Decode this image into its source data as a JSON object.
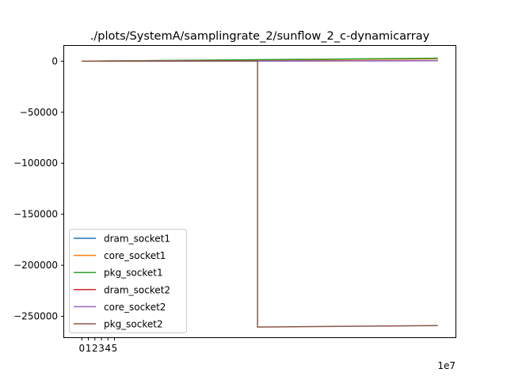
{
  "chart_data": {
    "type": "line",
    "title": "./plots/SystemA/samplingrate_2/sunflow_2_c-dynamicarray",
    "xlabel": "",
    "ylabel": "",
    "x_offset_label": "1e7",
    "xlim": [
      -2.7,
      57.2
    ],
    "ylim": [
      -270500,
      15000
    ],
    "xticks": [
      0,
      1,
      2,
      3,
      4,
      5
    ],
    "yticks": [
      0,
      -50000,
      -100000,
      -150000,
      -200000,
      -250000
    ],
    "xtick_labels": [
      "0",
      "1",
      "2",
      "3",
      "4",
      "5"
    ],
    "ytick_labels": [
      "0",
      "−50000",
      "−100000",
      "−150000",
      "−200000",
      "−250000"
    ],
    "legend_position": "lower-left",
    "grid": false,
    "series": [
      {
        "name": "dram_socket1",
        "color": "#1f77b4",
        "x": [
          0,
          27,
          54.5
        ],
        "y": [
          0,
          300,
          600
        ]
      },
      {
        "name": "core_socket1",
        "color": "#ff7f0e",
        "x": [
          0,
          27,
          54.5
        ],
        "y": [
          0,
          1200,
          2400
        ]
      },
      {
        "name": "pkg_socket1",
        "color": "#2ca02c",
        "x": [
          0,
          27,
          54.5
        ],
        "y": [
          0,
          1500,
          3000
        ]
      },
      {
        "name": "dram_socket2",
        "color": "#d62728",
        "x": [
          0,
          27,
          54.5
        ],
        "y": [
          0,
          300,
          600
        ]
      },
      {
        "name": "core_socket2",
        "color": "#9467bd",
        "x": [
          0,
          27,
          54.5
        ],
        "y": [
          0,
          200,
          400
        ]
      },
      {
        "name": "pkg_socket2",
        "color": "#8c564b",
        "x": [
          0,
          26.9,
          26.9,
          54.5
        ],
        "y": [
          0,
          500,
          -260500,
          -259000
        ]
      }
    ]
  }
}
